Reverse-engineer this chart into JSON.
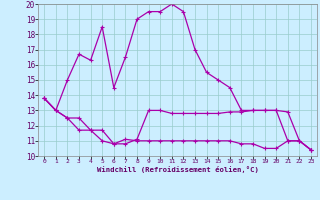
{
  "xlabel": "Windchill (Refroidissement éolien,°C)",
  "background_color": "#cceeff",
  "grid_color": "#99cccc",
  "line_color": "#aa00aa",
  "xlim": [
    -0.5,
    23.5
  ],
  "ylim": [
    10,
    20
  ],
  "xticks": [
    0,
    1,
    2,
    3,
    4,
    5,
    6,
    7,
    8,
    9,
    10,
    11,
    12,
    13,
    14,
    15,
    16,
    17,
    18,
    19,
    20,
    21,
    22,
    23
  ],
  "yticks": [
    10,
    11,
    12,
    13,
    14,
    15,
    16,
    17,
    18,
    19,
    20
  ],
  "line1_x": [
    0,
    1,
    2,
    3,
    4,
    5,
    6,
    7,
    8,
    9,
    10,
    11,
    12,
    13,
    14,
    15,
    16,
    17,
    18,
    19,
    20,
    21,
    22,
    23
  ],
  "line1_y": [
    13.8,
    13.0,
    15.0,
    16.7,
    16.3,
    18.5,
    14.5,
    16.5,
    19.0,
    19.5,
    19.5,
    20.0,
    19.5,
    17.0,
    15.5,
    15.0,
    14.5,
    13.0,
    13.0,
    13.0,
    13.0,
    12.9,
    11.0,
    10.4
  ],
  "line2_x": [
    0,
    1,
    2,
    3,
    4,
    5,
    6,
    7,
    8,
    9,
    10,
    11,
    12,
    13,
    14,
    15,
    16,
    17,
    18,
    19,
    20,
    21,
    22,
    23
  ],
  "line2_y": [
    13.8,
    13.0,
    12.5,
    12.5,
    11.7,
    11.7,
    10.8,
    10.8,
    11.1,
    13.0,
    13.0,
    12.8,
    12.8,
    12.8,
    12.8,
    12.8,
    12.9,
    12.9,
    13.0,
    13.0,
    13.0,
    11.0,
    11.0,
    10.4
  ],
  "line3_x": [
    0,
    1,
    2,
    3,
    4,
    5,
    6,
    7,
    8,
    9,
    10,
    11,
    12,
    13,
    14,
    15,
    16,
    17,
    18,
    19,
    20,
    21,
    22,
    23
  ],
  "line3_y": [
    13.8,
    13.0,
    12.5,
    11.7,
    11.7,
    11.0,
    10.8,
    11.1,
    11.0,
    11.0,
    11.0,
    11.0,
    11.0,
    11.0,
    11.0,
    11.0,
    11.0,
    10.8,
    10.8,
    10.5,
    10.5,
    11.0,
    11.0,
    10.4
  ]
}
